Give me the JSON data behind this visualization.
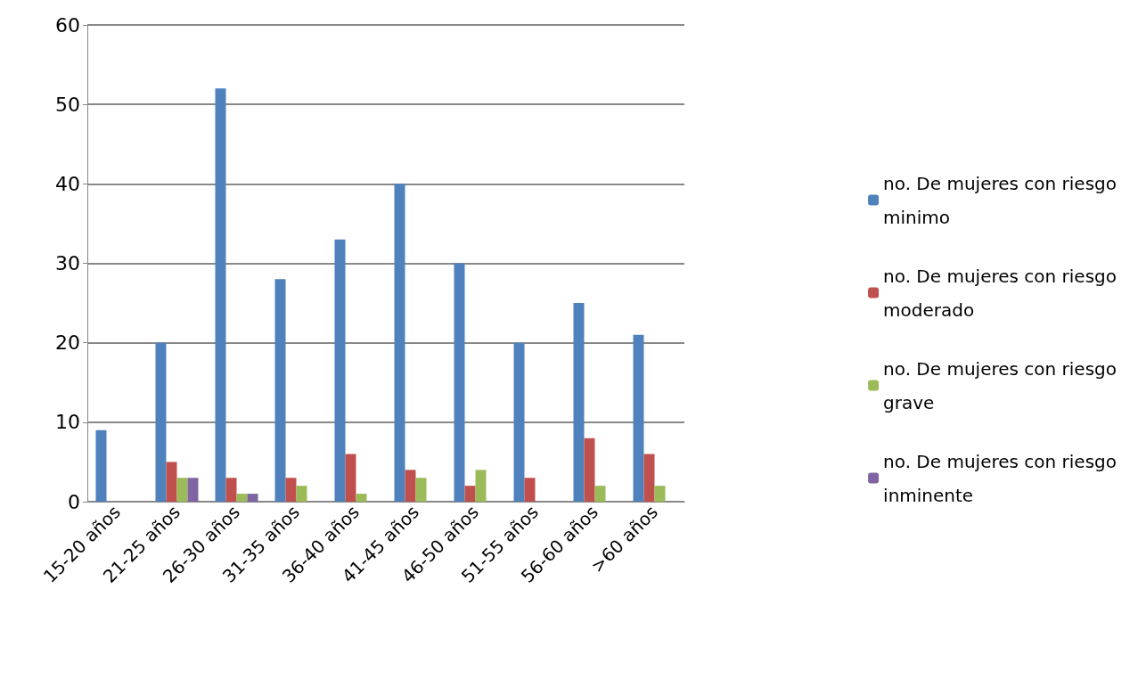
{
  "chart_data": {
    "type": "bar",
    "categories": [
      "15-20 años",
      "21-25 años",
      "26-30 años",
      "31-35 años",
      "36-40 años",
      "41-45 años",
      "46-50 años",
      "51-55 años",
      "56-60 años",
      ">60 años"
    ],
    "series": [
      {
        "name": "no. De mujeres con riesgo minimo",
        "color": "#4f81bd",
        "values": [
          9,
          20,
          52,
          28,
          33,
          40,
          30,
          20,
          25,
          21
        ]
      },
      {
        "name": "no. De mujeres con riesgo moderado",
        "color": "#c0504d",
        "values": [
          0,
          5,
          3,
          3,
          6,
          4,
          2,
          3,
          8,
          6
        ]
      },
      {
        "name": "no. De mujeres con riesgo grave",
        "color": "#9bbb59",
        "values": [
          0,
          3,
          1,
          2,
          1,
          3,
          4,
          0,
          2,
          2
        ]
      },
      {
        "name": "no. De mujeres con riesgo inminente",
        "color": "#8064a2",
        "values": [
          0,
          3,
          1,
          0,
          0,
          0,
          0,
          0,
          0,
          0
        ]
      }
    ],
    "ylim": [
      0,
      60
    ],
    "yticks": [
      0,
      10,
      20,
      30,
      40,
      50,
      60
    ],
    "grid": "y",
    "legend": "right"
  }
}
